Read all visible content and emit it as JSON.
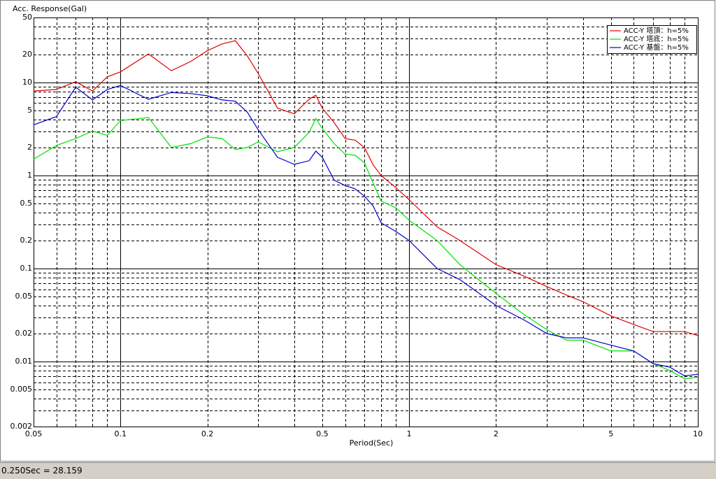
{
  "chart_data": {
    "type": "line",
    "title": "Acc. Response(Gal)",
    "x_label": "Period(Sec)",
    "x": [
      0.05,
      0.06,
      0.07,
      0.08,
      0.09,
      0.1,
      0.125,
      0.15,
      0.175,
      0.2,
      0.225,
      0.25,
      0.275,
      0.3,
      0.35,
      0.4,
      0.45,
      0.475,
      0.5,
      0.55,
      0.6,
      0.65,
      0.7,
      0.75,
      0.8,
      0.9,
      1.0,
      1.25,
      1.5,
      2,
      2.5,
      3,
      3.5,
      4,
      5,
      6,
      7,
      8,
      9,
      10
    ],
    "series": [
      {
        "name": "ACC-Y 塔頂：h=5%",
        "color": "#e00000",
        "values": [
          8.1,
          8.4,
          10.2,
          8.1,
          11.5,
          13,
          20.3,
          13.4,
          16.8,
          22,
          26,
          28.159,
          19.3,
          12.5,
          5.3,
          4.6,
          6.6,
          7.3,
          5.3,
          3.7,
          2.5,
          2.4,
          2.0,
          1.3,
          1.0,
          0.74,
          0.55,
          0.28,
          0.2,
          0.11,
          0.083,
          0.064,
          0.052,
          0.044,
          0.031,
          0.025,
          0.021,
          0.021,
          0.021,
          0.019
        ]
      },
      {
        "name": "ACC-Y 塔底：h=5%",
        "color": "#00e000",
        "values": [
          1.5,
          2.1,
          2.5,
          3.0,
          2.7,
          3.9,
          4.2,
          2.0,
          2.2,
          2.6,
          2.5,
          1.9,
          2.0,
          2.3,
          1.8,
          2.0,
          2.9,
          4.1,
          3.2,
          2.2,
          1.7,
          1.65,
          1.37,
          0.83,
          0.53,
          0.45,
          0.33,
          0.2,
          0.11,
          0.054,
          0.032,
          0.022,
          0.017,
          0.017,
          0.013,
          0.013,
          0.0095,
          0.008,
          0.0065,
          0.0068
        ]
      },
      {
        "name": "ACC-Y 基盤：h=5%",
        "color": "#0000d0",
        "values": [
          3.5,
          4.3,
          8.9,
          6.5,
          8.4,
          9.3,
          6.6,
          7.8,
          7.6,
          7.2,
          6.5,
          6.3,
          4.8,
          3.1,
          1.57,
          1.32,
          1.44,
          1.83,
          1.57,
          0.89,
          0.78,
          0.72,
          0.6,
          0.47,
          0.31,
          0.25,
          0.2,
          0.1,
          0.076,
          0.04,
          0.028,
          0.02,
          0.018,
          0.018,
          0.015,
          0.013,
          0.0095,
          0.0087,
          0.007,
          0.0073
        ]
      }
    ],
    "log_x": true,
    "log_y": true,
    "xlim": [
      0.05,
      10
    ],
    "xticks": [
      0.05,
      0.1,
      0.2,
      0.5,
      1,
      2,
      5,
      10
    ],
    "xminor": [
      0.06,
      0.07,
      0.08,
      0.09,
      0.3,
      0.4,
      0.6,
      0.7,
      0.8,
      0.9,
      3,
      4,
      6,
      7,
      8,
      9
    ],
    "ylim": [
      0.002,
      50
    ],
    "yticks": [
      50,
      20,
      10,
      5,
      2,
      1,
      0.5,
      0.2,
      0.1,
      0.05,
      0.02,
      0.01,
      0.005,
      0.002
    ],
    "yminor": [
      40,
      30,
      9,
      8,
      7,
      6,
      4,
      3,
      0.9,
      0.8,
      0.7,
      0.6,
      0.4,
      0.3,
      0.09,
      0.08,
      0.07,
      0.06,
      0.04,
      0.03,
      0.009,
      0.008,
      0.007,
      0.006,
      0.004,
      0.003
    ],
    "legend": "upper right",
    "grid": true
  },
  "status_bar": "0.250Sec = 28.159"
}
